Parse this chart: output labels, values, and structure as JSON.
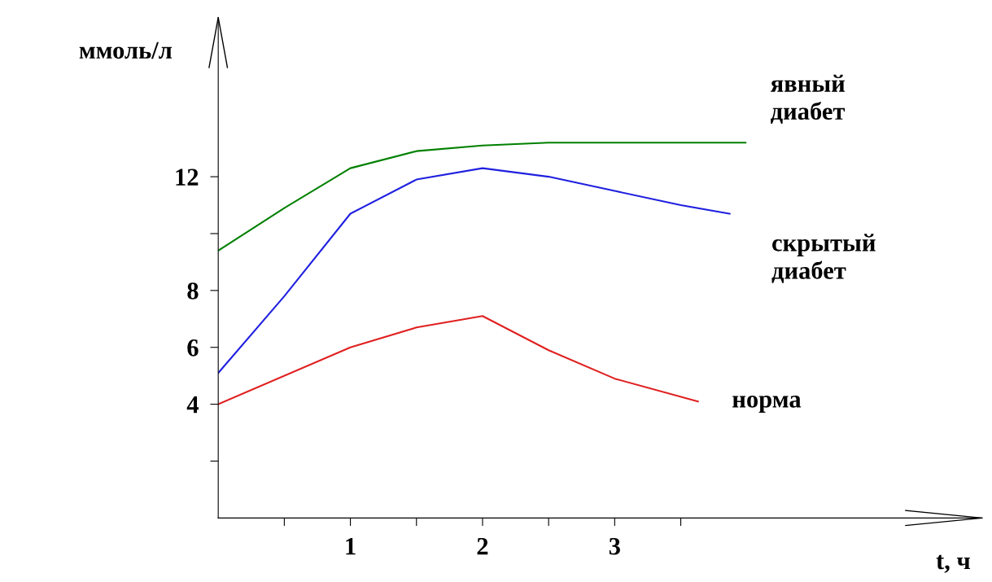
{
  "chart_data": {
    "type": "line",
    "ylabel": "ммоль/л",
    "xlabel": "t, ч",
    "xlim": [
      0,
      5.78
    ],
    "ylim": [
      0,
      17.6
    ],
    "xticks": [
      {
        "value": 0.5,
        "label": null
      },
      1,
      {
        "value": 1.5,
        "label": null
      },
      2,
      {
        "value": 2.5,
        "label": null
      },
      3,
      {
        "value": 3.5,
        "label": null
      }
    ],
    "yticks": [
      {
        "value": 2,
        "label": null
      },
      4,
      6,
      8,
      {
        "value": 10,
        "label": null
      },
      12
    ],
    "grid": false,
    "legend": false,
    "marker": "none",
    "line_style": "solid",
    "series": [
      {
        "name": "явный\nдиабет",
        "color": "#008000",
        "x": [
          0,
          0.5,
          1,
          1.5,
          2,
          2.5,
          3,
          3.99
        ],
        "values": [
          9.4,
          10.9,
          12.3,
          12.9,
          13.1,
          13.2,
          13.2,
          13.2
        ]
      },
      {
        "name": "скрытый\nдиабет",
        "color": "#2020e0",
        "x": [
          0,
          0.5,
          1,
          1.5,
          2,
          2.5,
          3,
          3.5,
          3.87
        ],
        "values": [
          5.1,
          7.8,
          10.7,
          11.9,
          12.3,
          12.0,
          11.5,
          11.0,
          10.7
        ]
      },
      {
        "name": "норма",
        "color": "#e02020",
        "x": [
          0,
          1,
          1.5,
          2,
          2.5,
          3,
          3.63
        ],
        "values": [
          4.0,
          6.0,
          6.7,
          7.1,
          5.9,
          4.9,
          4.1
        ]
      }
    ]
  }
}
